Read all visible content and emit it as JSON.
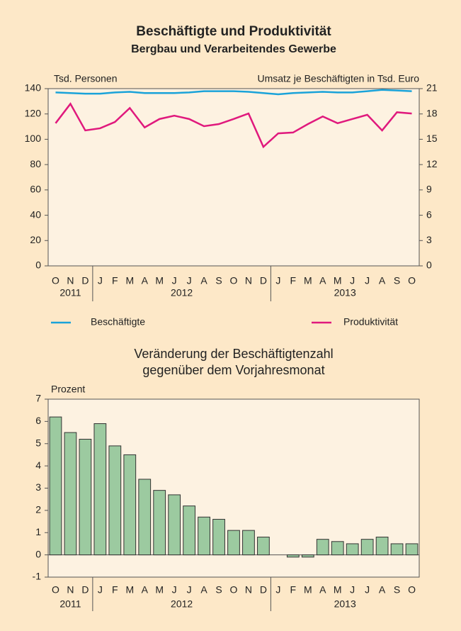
{
  "chart_data": [
    {
      "type": "line",
      "title": "Beschäftigte und Produktivität",
      "subtitle": "Bergbau und Verarbeitendes Gewerbe",
      "ylabel": "Tsd. Personen",
      "y2label": "Umsatz je Beschäftigten in Tsd. Euro",
      "categories": [
        "O",
        "N",
        "D",
        "J",
        "F",
        "M",
        "A",
        "M",
        "J",
        "J",
        "A",
        "S",
        "O",
        "N",
        "D",
        "J",
        "F",
        "M",
        "A",
        "M",
        "J",
        "J",
        "A",
        "S",
        "O"
      ],
      "years": [
        "2011",
        "2012",
        "2013"
      ],
      "ylim": [
        0,
        140
      ],
      "yticks": [
        0,
        20,
        40,
        60,
        80,
        100,
        120,
        140
      ],
      "y2lim": [
        0,
        21
      ],
      "y2ticks": [
        0,
        3,
        6,
        9,
        12,
        15,
        18,
        21
      ],
      "series": [
        {
          "name": "Beschäftigte",
          "color": "#1aa3d9",
          "values": [
            137,
            136.5,
            136,
            136,
            137,
            137.5,
            136.5,
            136.5,
            136.5,
            137,
            138,
            138,
            138,
            137.5,
            136.5,
            135.5,
            136.5,
            137,
            137.5,
            137,
            137,
            138,
            139,
            138.5,
            138
          ]
        },
        {
          "name": "Produktivität",
          "color": "#e0197d",
          "axis": "y2",
          "values": [
            16.9,
            19.2,
            16.05,
            16.3,
            17.05,
            18.7,
            16.4,
            17.4,
            17.8,
            17.4,
            16.55,
            16.8,
            17.4,
            18.05,
            14.1,
            15.7,
            15.8,
            16.8,
            17.7,
            16.9,
            17.4,
            17.9,
            16.05,
            18.2,
            18.05
          ]
        }
      ]
    },
    {
      "type": "bar",
      "title": [
        "Veränderung der Beschäftigtenzahl",
        "gegenüber dem Vorjahresmonat"
      ],
      "ylabel": "Prozent",
      "categories": [
        "O",
        "N",
        "D",
        "J",
        "F",
        "M",
        "A",
        "M",
        "J",
        "J",
        "A",
        "S",
        "O",
        "N",
        "D",
        "J",
        "F",
        "M",
        "A",
        "M",
        "J",
        "J",
        "A",
        "S",
        "O"
      ],
      "years": [
        "2011",
        "2012",
        "2013"
      ],
      "ylim": [
        -1,
        7
      ],
      "yticks": [
        -1,
        0,
        1,
        2,
        3,
        4,
        5,
        6,
        7
      ],
      "color": "#9ccaa0",
      "values": [
        6.2,
        5.5,
        5.2,
        5.9,
        4.9,
        4.5,
        3.4,
        2.9,
        2.7,
        2.2,
        1.7,
        1.6,
        1.1,
        1.1,
        0.8,
        0.0,
        -0.1,
        -0.1,
        0.7,
        0.6,
        0.5,
        0.7,
        0.8,
        0.5,
        0.5
      ]
    }
  ]
}
